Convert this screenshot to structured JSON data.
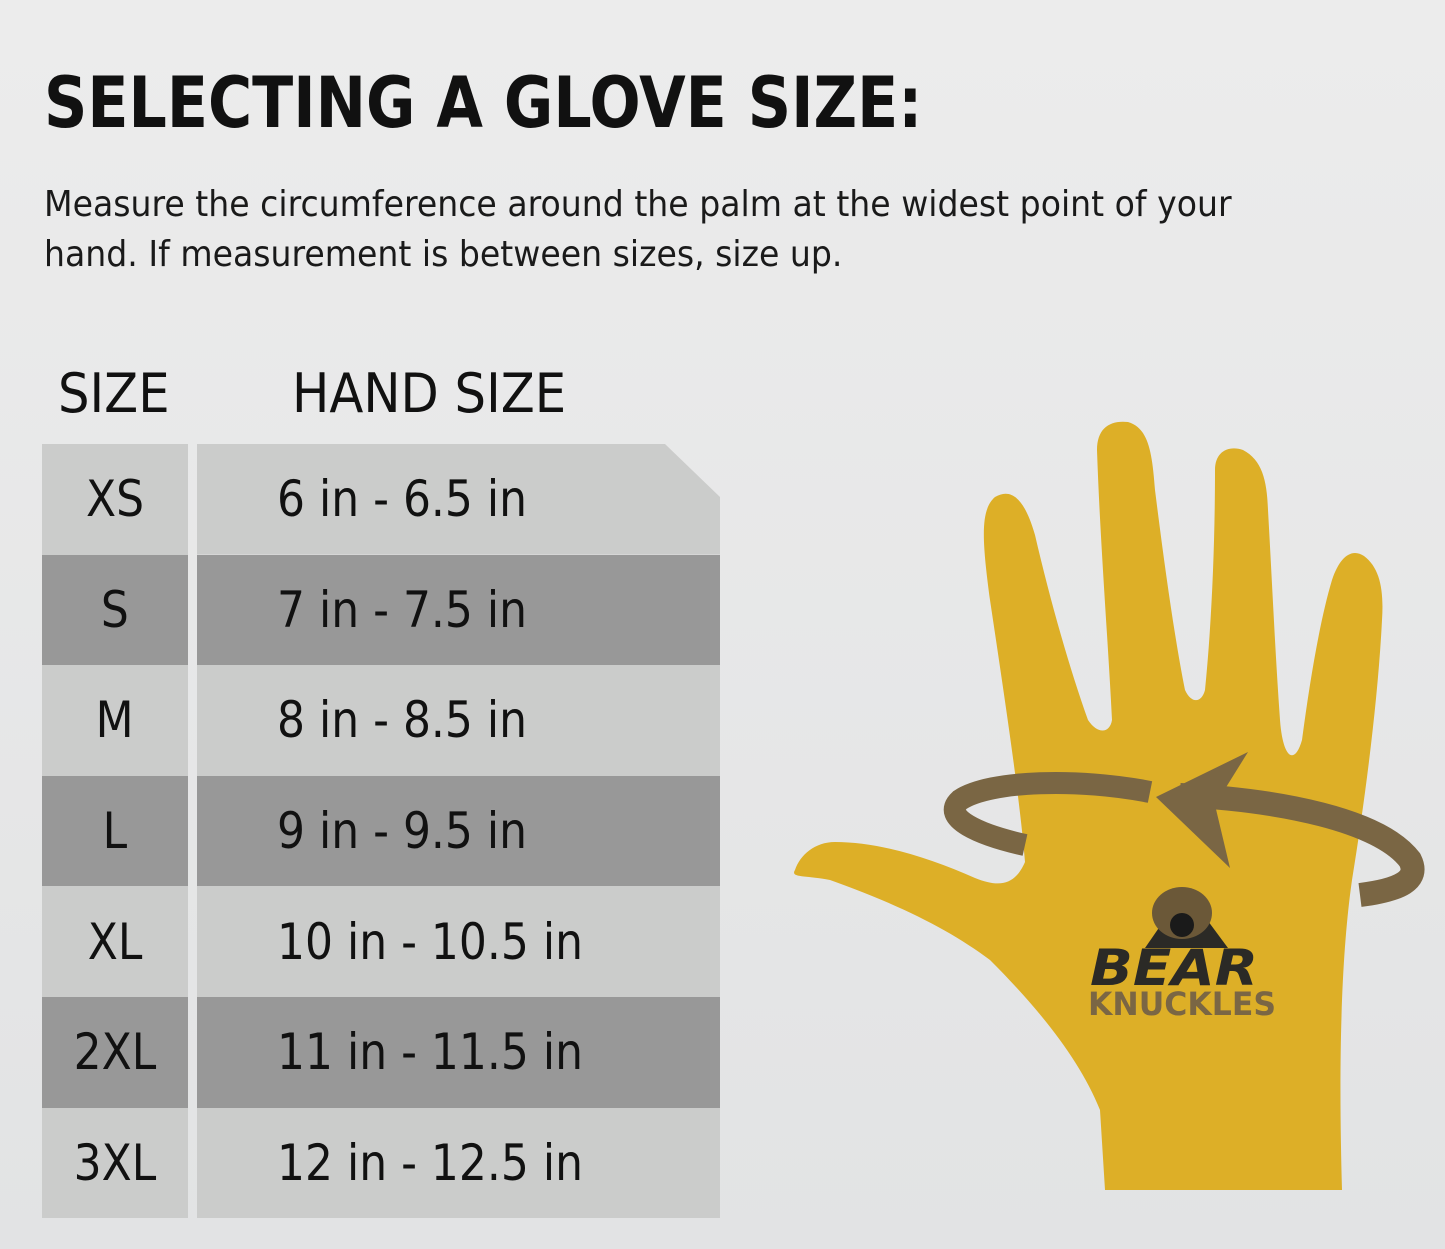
{
  "title": "SELECTING A GLOVE SIZE:",
  "description": "Measure the circumference around the palm at the widest point of your hand. If measurement is between sizes, size up.",
  "table": {
    "headers": [
      "SIZE",
      "HAND SIZE"
    ],
    "rows": [
      {
        "size": "XS",
        "hand": "6 in - 6.5 in"
      },
      {
        "size": "S",
        "hand": "7 in - 7.5 in"
      },
      {
        "size": "M",
        "hand": "8 in - 8.5 in"
      },
      {
        "size": "L",
        "hand": "9 in - 9.5 in"
      },
      {
        "size": "XL",
        "hand": "10 in - 10.5 in"
      },
      {
        "size": "2XL",
        "hand": "11 in - 11.5 in"
      },
      {
        "size": "3XL",
        "hand": "12 in - 12.5 in"
      }
    ]
  },
  "logo": {
    "line1": "BEAR",
    "line2": "KNUCKLES"
  },
  "colors": {
    "glove": "#ddaf27",
    "arrow": "#7a6644",
    "row_light": "#cbcccb",
    "row_dark": "#989898"
  }
}
